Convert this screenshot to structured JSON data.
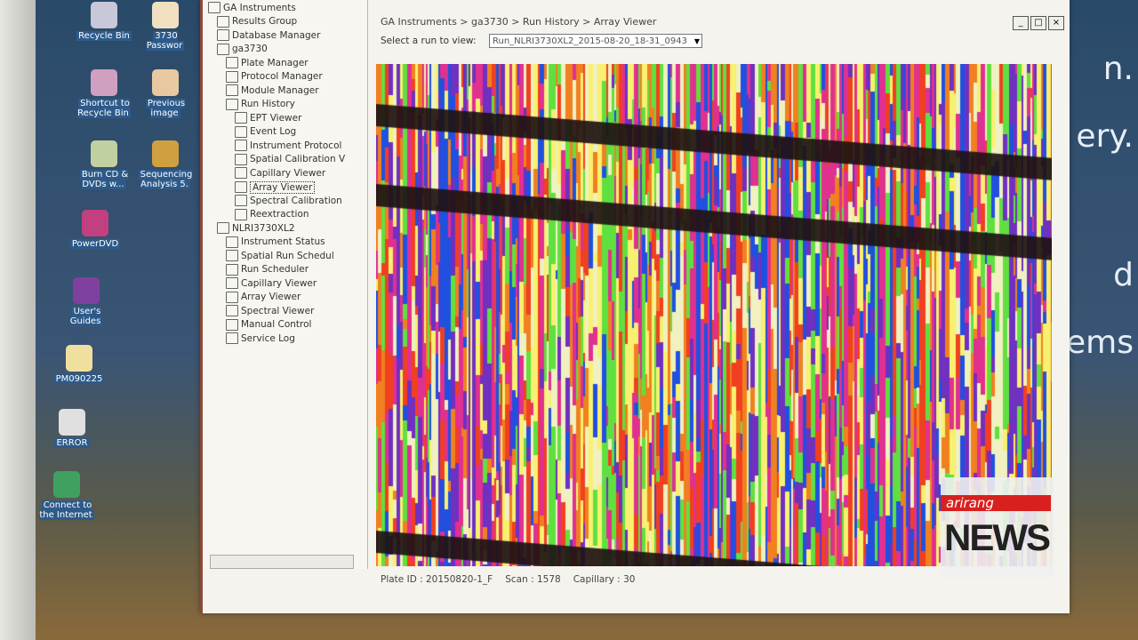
{
  "desktop": {
    "icons": [
      {
        "label": "Recycle Bin",
        "color": "#c8c8d8"
      },
      {
        "label": "3730 Passwor",
        "color": "#f0e0c0"
      },
      {
        "label": "Shortcut to Recycle Bin",
        "color": "#d0a0c0"
      },
      {
        "label": "Previous image",
        "color": "#e8c8a0"
      },
      {
        "label": "Burn CD & DVDs w...",
        "color": "#c0d0a0"
      },
      {
        "label": "Sequencing Analysis 5.",
        "color": "#d0a040"
      },
      {
        "label": "PowerDVD",
        "color": "#c04080"
      },
      {
        "label": "User's Guides",
        "color": "#8040a0"
      },
      {
        "label": "PM090225",
        "color": "#f0e0a0"
      },
      {
        "label": "ERROR",
        "color": "#e0e0e0"
      },
      {
        "label": "Connect to the Internet",
        "color": "#40a060"
      }
    ],
    "background_text": [
      "n.",
      "ery.",
      "d",
      "ems"
    ]
  },
  "window": {
    "breadcrumb": "GA Instruments > ga3730 > Run History > Array Viewer",
    "run_label": "Select a run to view:",
    "run_value": "Run_NLRI3730XL2_2015-08-20_18-31_0943",
    "buttons": {
      "minimize": "_",
      "maximize": "□",
      "close": "×"
    }
  },
  "tree": [
    {
      "label": "GA Instruments",
      "level": 0
    },
    {
      "label": "Results Group",
      "level": 1
    },
    {
      "label": "Database Manager",
      "level": 1
    },
    {
      "label": "ga3730",
      "level": 1
    },
    {
      "label": "Plate Manager",
      "level": 2
    },
    {
      "label": "Protocol Manager",
      "level": 2
    },
    {
      "label": "Module Manager",
      "level": 2
    },
    {
      "label": "Run History",
      "level": 2
    },
    {
      "label": "EPT Viewer",
      "level": 3
    },
    {
      "label": "Event Log",
      "level": 3
    },
    {
      "label": "Instrument Protocol",
      "level": 3
    },
    {
      "label": "Spatial Calibration V",
      "level": 3
    },
    {
      "label": "Capillary Viewer",
      "level": 3
    },
    {
      "label": "Array Viewer",
      "level": 3,
      "selected": true
    },
    {
      "label": "Spectral Calibration",
      "level": 3
    },
    {
      "label": "Reextraction",
      "level": 3
    },
    {
      "label": "NLRI3730XL2",
      "level": 1
    },
    {
      "label": "Instrument Status",
      "level": 2
    },
    {
      "label": "Spatial Run Schedul",
      "level": 2
    },
    {
      "label": "Run Scheduler",
      "level": 2
    },
    {
      "label": "Capillary Viewer",
      "level": 2
    },
    {
      "label": "Array Viewer",
      "level": 2
    },
    {
      "label": "Spectral Viewer",
      "level": 2
    },
    {
      "label": "Manual Control",
      "level": 2
    },
    {
      "label": "Service Log",
      "level": 2
    }
  ],
  "status": {
    "plate_label": "Plate ID :",
    "plate_value": "20150820-1_F",
    "scan_label": "Scan :",
    "scan_value": "1578",
    "capillary_label": "Capillary :",
    "capillary_value": "30"
  },
  "array_colors": [
    "#2050e0",
    "#f04020",
    "#60e040",
    "#f8f070",
    "#f0f0c0",
    "#e03090",
    "#7030c0",
    "#f08020",
    "#202020"
  ],
  "logo": {
    "brand": "arirang",
    "text": "NEWS",
    "accent": "#d8201e"
  }
}
